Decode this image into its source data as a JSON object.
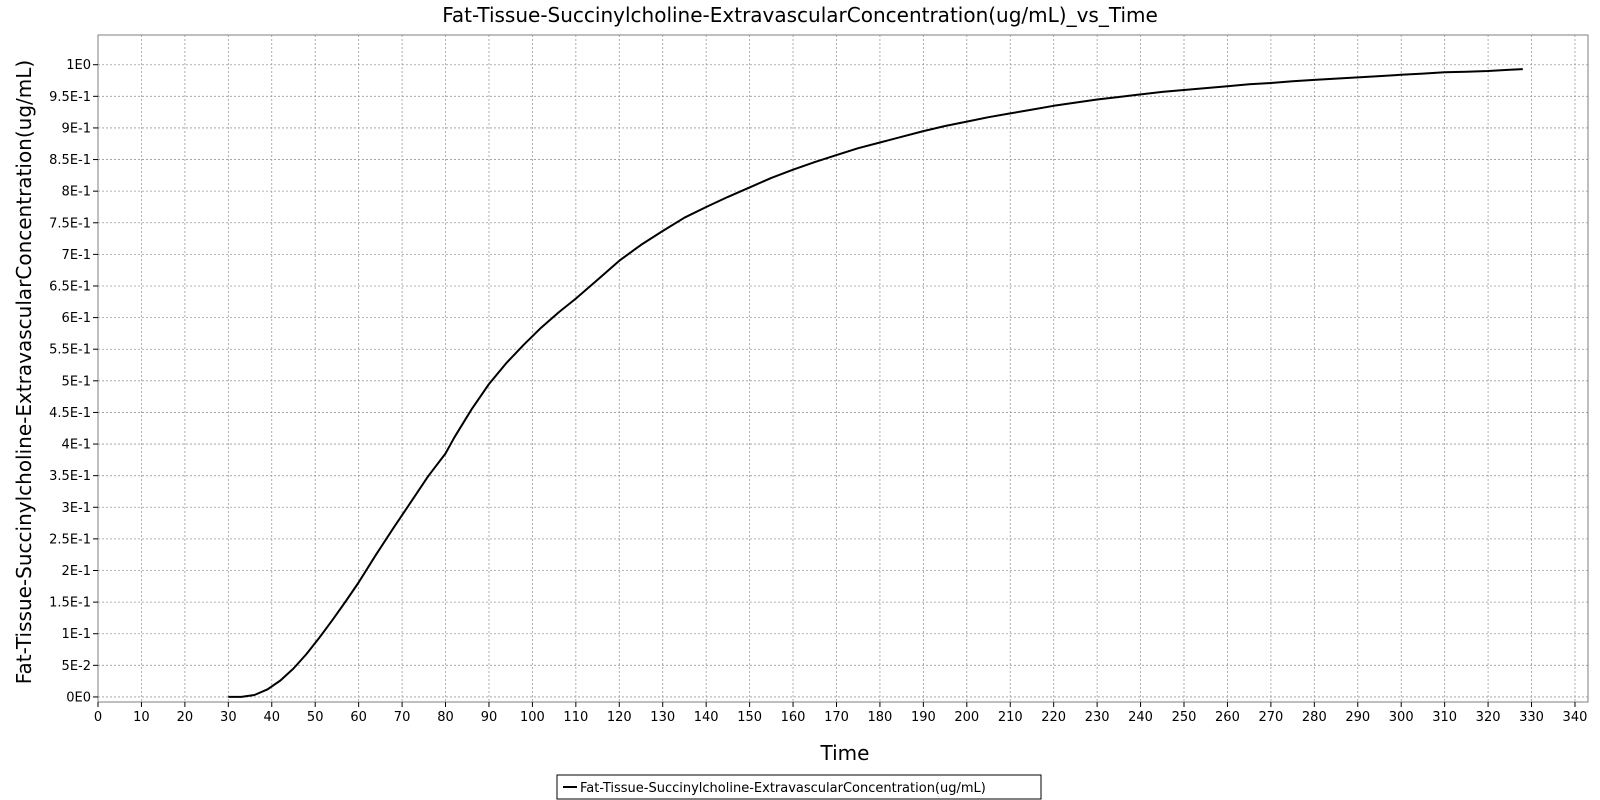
{
  "chart_data": {
    "type": "line",
    "title": "Fat-Tissue-Succinylcholine-ExtravascularConcentration(ug/mL)_vs_Time",
    "xlabel": "Time",
    "ylabel": "Fat-Tissue-Succinylcholine-ExtravascularConcentration(ug/mL)",
    "xlim": [
      0,
      343
    ],
    "ylim": [
      -0.008,
      1.047
    ],
    "x_ticks": [
      0,
      10,
      20,
      30,
      40,
      50,
      60,
      70,
      80,
      90,
      100,
      110,
      120,
      130,
      140,
      150,
      160,
      170,
      180,
      190,
      200,
      210,
      220,
      230,
      240,
      250,
      260,
      270,
      280,
      290,
      300,
      310,
      320,
      330,
      340
    ],
    "y_ticks": [
      0,
      0.05,
      0.1,
      0.15,
      0.2,
      0.25,
      0.3,
      0.35,
      0.4,
      0.45,
      0.5,
      0.55,
      0.6,
      0.65,
      0.7,
      0.75,
      0.8,
      0.85,
      0.9,
      0.95,
      1.0
    ],
    "y_tick_labels": [
      "0E0",
      "5E-2",
      "1E-1",
      "1.5E-1",
      "2E-1",
      "2.5E-1",
      "3E-1",
      "3.5E-1",
      "4E-1",
      "4.5E-1",
      "5E-1",
      "5.5E-1",
      "6E-1",
      "6.5E-1",
      "7E-1",
      "7.5E-1",
      "8E-1",
      "8.5E-1",
      "9E-1",
      "9.5E-1",
      "1E0"
    ],
    "grid": true,
    "legend_position": "bottom-center",
    "series": [
      {
        "name": "Fat-Tissue-Succinylcholine-ExtravascularConcentration(ug/mL)",
        "color": "#000000",
        "x": [
          30,
          33,
          36,
          39,
          42,
          45,
          48,
          51,
          54,
          57,
          60,
          64,
          68,
          72,
          76,
          80,
          82,
          86,
          90,
          94,
          98,
          102,
          106,
          110,
          115,
          120,
          125,
          130,
          135,
          140,
          145,
          150,
          155,
          160,
          165,
          170,
          175,
          180,
          185,
          190,
          195,
          200,
          205,
          210,
          215,
          220,
          225,
          230,
          235,
          240,
          245,
          250,
          255,
          260,
          265,
          270,
          275,
          280,
          285,
          290,
          295,
          300,
          305,
          310,
          315,
          320,
          325,
          328
        ],
        "y": [
          0.0,
          0.0,
          0.003,
          0.012,
          0.026,
          0.045,
          0.068,
          0.094,
          0.122,
          0.151,
          0.181,
          0.225,
          0.267,
          0.308,
          0.349,
          0.385,
          0.41,
          0.455,
          0.495,
          0.528,
          0.557,
          0.584,
          0.608,
          0.63,
          0.66,
          0.69,
          0.715,
          0.737,
          0.758,
          0.775,
          0.791,
          0.806,
          0.821,
          0.834,
          0.846,
          0.857,
          0.868,
          0.877,
          0.886,
          0.895,
          0.903,
          0.91,
          0.917,
          0.923,
          0.929,
          0.935,
          0.94,
          0.945,
          0.949,
          0.953,
          0.957,
          0.96,
          0.963,
          0.966,
          0.969,
          0.971,
          0.974,
          0.976,
          0.978,
          0.98,
          0.982,
          0.984,
          0.986,
          0.988,
          0.989,
          0.99,
          0.992,
          0.993
        ]
      }
    ]
  }
}
